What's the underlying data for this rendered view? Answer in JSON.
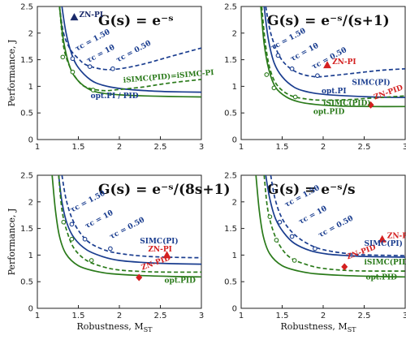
{
  "chart_data": {
    "type": "line",
    "xlabel": "Robustness, M",
    "xlabel_sub": "ST",
    "ylabel": "Performance, J",
    "xlim": [
      1,
      3
    ],
    "ylim": [
      0,
      2.5
    ],
    "xticks": [
      "1",
      "1.5",
      "2",
      "2.5",
      "3"
    ],
    "yticks": [
      "0",
      "0.5",
      "1",
      "1.5",
      "2",
      "2.5"
    ],
    "colors": {
      "pi": "#1a3d8f",
      "pid": "#2a7a1a",
      "zn": "#d42020",
      "znpi_dark": "#1a2a6a"
    },
    "panels": [
      {
        "title": "G(s) = e⁻ˢ",
        "series": [
          {
            "key": "pi",
            "style": "solid",
            "x": [
              1.3,
              1.35,
              1.42,
              1.5,
              1.65,
              1.8,
              2.0,
              2.3,
              2.6,
              3.0
            ],
            "y": [
              2.5,
              2.0,
              1.6,
              1.35,
              1.12,
              1.02,
              0.96,
              0.92,
              0.9,
              0.89
            ]
          },
          {
            "key": "pi",
            "style": "dashed",
            "x": [
              1.27,
              1.32,
              1.4,
              1.5,
              1.6,
              1.8,
              2.0,
              2.3,
              2.6,
              3.0
            ],
            "y": [
              2.5,
              2.0,
              1.7,
              1.52,
              1.4,
              1.32,
              1.33,
              1.42,
              1.55,
              1.72
            ]
          },
          {
            "key": "pid",
            "style": "solid",
            "x": [
              1.27,
              1.32,
              1.4,
              1.5,
              1.65,
              1.8,
              2.0,
              2.3,
              2.6,
              3.0
            ],
            "y": [
              2.5,
              1.85,
              1.35,
              1.1,
              0.93,
              0.87,
              0.84,
              0.82,
              0.81,
              0.8
            ]
          },
          {
            "key": "pid",
            "style": "dashed",
            "x": [
              1.27,
              1.32,
              1.4,
              1.5,
              1.6,
              1.8,
              2.0,
              2.3,
              2.6,
              3.0
            ],
            "y": [
              2.5,
              1.75,
              1.35,
              1.1,
              0.98,
              0.92,
              0.94,
              0.99,
              1.06,
              1.13
            ]
          }
        ],
        "markers": [
          {
            "x": 1.43,
            "y": 1.52,
            "key": "pi"
          },
          {
            "x": 1.64,
            "y": 1.37,
            "key": "pi"
          },
          {
            "x": 1.92,
            "y": 1.33,
            "key": "pi"
          },
          {
            "x": 1.31,
            "y": 1.55,
            "key": "pid"
          },
          {
            "x": 1.43,
            "y": 1.27,
            "key": "pid"
          },
          {
            "x": 1.68,
            "y": 0.93,
            "key": "pid"
          }
        ],
        "zn": {
          "x": 1.45,
          "y": 2.3,
          "color": "znpi_dark"
        },
        "labels": [
          {
            "text": "ZN-PI",
            "x": 1.51,
            "y": 2.3,
            "key": "znpi_dark",
            "rot": 0
          },
          {
            "text": "τc = 1.5θ",
            "x": 1.48,
            "y": 1.66,
            "key": "pi",
            "rot": -28
          },
          {
            "text": "τc = 1θ",
            "x": 1.62,
            "y": 1.44,
            "key": "pi",
            "rot": -28
          },
          {
            "text": "τc = 0.5θ",
            "x": 1.98,
            "y": 1.45,
            "key": "pi",
            "rot": -28
          },
          {
            "text": "iSIMC(PID)=iSIMC-PI",
            "x": 2.05,
            "y": 1.07,
            "key": "pid",
            "rot": -5
          },
          {
            "text": "opt.PI / PID",
            "x": 1.65,
            "y": 0.78,
            "key": "pi",
            "rot": 0
          }
        ]
      },
      {
        "title": "G(s) = e⁻ˢ/(s+1)",
        "series": [
          {
            "key": "pi",
            "style": "solid",
            "x": [
              1.28,
              1.33,
              1.4,
              1.5,
              1.65,
              1.8,
              2.0,
              2.3,
              2.6,
              3.0
            ],
            "y": [
              2.5,
              1.9,
              1.45,
              1.18,
              0.98,
              0.9,
              0.85,
              0.82,
              0.8,
              0.79
            ]
          },
          {
            "key": "pi",
            "style": "dashed",
            "x": [
              1.3,
              1.36,
              1.45,
              1.55,
              1.7,
              1.9,
              2.1,
              2.4,
              2.7,
              3.0
            ],
            "y": [
              2.5,
              2.0,
              1.62,
              1.4,
              1.25,
              1.18,
              1.2,
              1.25,
              1.3,
              1.33
            ]
          },
          {
            "key": "pid",
            "style": "solid",
            "x": [
              1.24,
              1.28,
              1.34,
              1.42,
              1.55,
              1.7,
              1.9,
              2.2,
              2.6,
              3.0
            ],
            "y": [
              2.5,
              1.8,
              1.3,
              0.98,
              0.8,
              0.71,
              0.66,
              0.63,
              0.62,
              0.62
            ]
          },
          {
            "key": "pid",
            "style": "dashed",
            "x": [
              1.25,
              1.3,
              1.36,
              1.45,
              1.6,
              1.8,
              2.0,
              2.3,
              2.6,
              3.0
            ],
            "y": [
              2.5,
              1.75,
              1.28,
              1.0,
              0.83,
              0.76,
              0.74,
              0.75,
              0.78,
              0.82
            ]
          }
        ],
        "markers": [
          {
            "x": 1.45,
            "y": 1.58,
            "key": "pi"
          },
          {
            "x": 1.62,
            "y": 1.33,
            "key": "pi"
          },
          {
            "x": 1.93,
            "y": 1.2,
            "key": "pi"
          },
          {
            "x": 1.31,
            "y": 1.22,
            "key": "pid"
          },
          {
            "x": 1.4,
            "y": 0.97,
            "key": "pid"
          },
          {
            "x": 1.66,
            "y": 0.8,
            "key": "pid"
          }
        ],
        "zn": {
          "x": 2.05,
          "y": 1.4,
          "color": "zn"
        },
        "zn2": {
          "x": 2.58,
          "y": 0.65,
          "color": "zn"
        },
        "labels": [
          {
            "text": "ZN-PI",
            "x": 2.11,
            "y": 1.42,
            "key": "zn",
            "rot": 0
          },
          {
            "text": "ZN-PID",
            "x": 2.63,
            "y": 0.75,
            "key": "zn",
            "rot": -20
          },
          {
            "text": "τc = 1.5θ",
            "x": 1.38,
            "y": 1.68,
            "key": "pi",
            "rot": -28
          },
          {
            "text": "τc = 1θ",
            "x": 1.62,
            "y": 1.47,
            "key": "pi",
            "rot": -28
          },
          {
            "text": "τc = 0.5θ",
            "x": 1.88,
            "y": 1.32,
            "key": "pi",
            "rot": -28
          },
          {
            "text": "SIMC(PI)",
            "x": 2.35,
            "y": 1.03,
            "key": "pi",
            "rot": 0
          },
          {
            "text": "opt.PI",
            "x": 1.98,
            "y": 0.87,
            "key": "pi",
            "rot": 0
          },
          {
            "text": "iSIMC(PID)",
            "x": 2.0,
            "y": 0.64,
            "key": "pid",
            "rot": 0
          },
          {
            "text": "opt.PID",
            "x": 1.88,
            "y": 0.48,
            "key": "pid",
            "rot": 0
          }
        ]
      },
      {
        "title": "G(s) = e⁻ˢ/(8s+1)",
        "series": [
          {
            "key": "pi",
            "style": "solid",
            "x": [
              1.26,
              1.3,
              1.36,
              1.45,
              1.6,
              1.8,
              2.0,
              2.3,
              2.6,
              3.0
            ],
            "y": [
              2.5,
              2.0,
              1.6,
              1.32,
              1.1,
              0.97,
              0.9,
              0.86,
              0.84,
              0.83
            ]
          },
          {
            "key": "pi",
            "style": "dashed",
            "x": [
              1.3,
              1.35,
              1.42,
              1.52,
              1.65,
              1.85,
              2.05,
              2.3,
              2.6,
              3.0
            ],
            "y": [
              2.5,
              2.05,
              1.7,
              1.42,
              1.22,
              1.08,
              1.02,
              0.98,
              0.96,
              0.95
            ]
          },
          {
            "key": "pid",
            "style": "solid",
            "x": [
              1.18,
              1.22,
              1.27,
              1.35,
              1.5,
              1.7,
              1.9,
              2.2,
              2.6,
              3.0
            ],
            "y": [
              2.5,
              1.85,
              1.35,
              1.02,
              0.8,
              0.7,
              0.65,
              0.62,
              0.6,
              0.59
            ]
          },
          {
            "key": "pid",
            "style": "dashed",
            "x": [
              1.26,
              1.3,
              1.36,
              1.45,
              1.6,
              1.8,
              2.0,
              2.3,
              2.6,
              3.0
            ],
            "y": [
              2.5,
              1.85,
              1.45,
              1.12,
              0.9,
              0.78,
              0.72,
              0.69,
              0.68,
              0.68
            ]
          }
        ],
        "markers": [
          {
            "x": 1.42,
            "y": 1.58,
            "key": "pi"
          },
          {
            "x": 1.58,
            "y": 1.3,
            "key": "pi"
          },
          {
            "x": 1.89,
            "y": 1.12,
            "key": "pi"
          },
          {
            "x": 1.32,
            "y": 1.62,
            "key": "pid"
          },
          {
            "x": 1.42,
            "y": 1.3,
            "key": "pid"
          },
          {
            "x": 1.66,
            "y": 0.9,
            "key": "pid"
          }
        ],
        "zn": {
          "x": 2.58,
          "y": 1.0,
          "color": "zn"
        },
        "zn2": {
          "x": 2.24,
          "y": 0.58,
          "color": "zn"
        },
        "labels": [
          {
            "text": "ZN-PI",
            "x": 2.35,
            "y": 1.07,
            "key": "zn",
            "rot": 0
          },
          {
            "text": "ZN-PID",
            "x": 2.28,
            "y": 0.72,
            "key": "zn",
            "rot": -20
          },
          {
            "text": "τc = 1.5θ",
            "x": 1.42,
            "y": 1.8,
            "key": "pi",
            "rot": -28
          },
          {
            "text": "τc = 1θ",
            "x": 1.6,
            "y": 1.5,
            "key": "pi",
            "rot": -28
          },
          {
            "text": "τc = 0.5θ",
            "x": 1.9,
            "y": 1.3,
            "key": "pi",
            "rot": -28
          },
          {
            "text": "SIMC(PI)",
            "x": 2.25,
            "y": 1.22,
            "key": "pi",
            "rot": 0
          },
          {
            "text": "opt.PID",
            "x": 2.55,
            "y": 0.48,
            "key": "pid",
            "rot": 0
          }
        ]
      },
      {
        "title": "G(s) = e⁻ˢ/s",
        "series": [
          {
            "key": "pi",
            "style": "solid",
            "x": [
              1.3,
              1.35,
              1.42,
              1.52,
              1.65,
              1.85,
              2.05,
              2.3,
              2.6,
              3.0
            ],
            "y": [
              2.5,
              2.05,
              1.68,
              1.42,
              1.22,
              1.08,
              1.02,
              0.99,
              0.97,
              0.96
            ]
          },
          {
            "key": "pi",
            "style": "dashed",
            "x": [
              1.36,
              1.41,
              1.48,
              1.58,
              1.72,
              1.9,
              2.1,
              2.35,
              2.6,
              3.0
            ],
            "y": [
              2.5,
              2.08,
              1.75,
              1.5,
              1.3,
              1.15,
              1.07,
              1.02,
              1.0,
              0.99
            ]
          },
          {
            "key": "pid",
            "style": "solid",
            "x": [
              1.18,
              1.22,
              1.27,
              1.35,
              1.5,
              1.7,
              1.9,
              2.2,
              2.6,
              3.0
            ],
            "y": [
              2.5,
              1.85,
              1.35,
              1.02,
              0.8,
              0.7,
              0.65,
              0.62,
              0.6,
              0.59
            ]
          },
          {
            "key": "pid",
            "style": "dashed",
            "x": [
              1.28,
              1.32,
              1.38,
              1.47,
              1.6,
              1.8,
              2.0,
              2.3,
              2.6,
              3.0
            ],
            "y": [
              2.5,
              1.9,
              1.5,
              1.18,
              0.95,
              0.82,
              0.75,
              0.71,
              0.7,
              0.7
            ]
          }
        ],
        "markers": [
          {
            "x": 1.47,
            "y": 1.62,
            "key": "pi"
          },
          {
            "x": 1.62,
            "y": 1.35,
            "key": "pi"
          },
          {
            "x": 1.9,
            "y": 1.12,
            "key": "pi"
          },
          {
            "x": 1.35,
            "y": 1.72,
            "key": "pid"
          },
          {
            "x": 1.43,
            "y": 1.28,
            "key": "pid"
          },
          {
            "x": 1.65,
            "y": 0.9,
            "key": "pid"
          }
        ],
        "zn": {
          "x": 2.72,
          "y": 1.3,
          "color": "zn"
        },
        "zn2": {
          "x": 2.26,
          "y": 0.78,
          "color": "zn"
        },
        "labels": [
          {
            "text": "ZN-PI",
            "x": 2.78,
            "y": 1.32,
            "key": "zn",
            "rot": 0
          },
          {
            "text": "ZN-PID",
            "x": 2.3,
            "y": 0.92,
            "key": "zn",
            "rot": -20
          },
          {
            "text": "τc = 1.5θ",
            "x": 1.55,
            "y": 1.9,
            "key": "pi",
            "rot": -28
          },
          {
            "text": "τc = 1θ",
            "x": 1.72,
            "y": 1.58,
            "key": "pi",
            "rot": -28
          },
          {
            "text": "τc = 0.5θ",
            "x": 1.96,
            "y": 1.33,
            "key": "pi",
            "rot": -28
          },
          {
            "text": "SIMC(PI)",
            "x": 2.5,
            "y": 1.17,
            "key": "pi",
            "rot": 0
          },
          {
            "text": "iSIMC(PID)",
            "x": 2.5,
            "y": 0.82,
            "key": "pid",
            "rot": 0
          },
          {
            "text": "opt.PID",
            "x": 2.52,
            "y": 0.54,
            "key": "pid",
            "rot": 0
          }
        ]
      }
    ]
  }
}
